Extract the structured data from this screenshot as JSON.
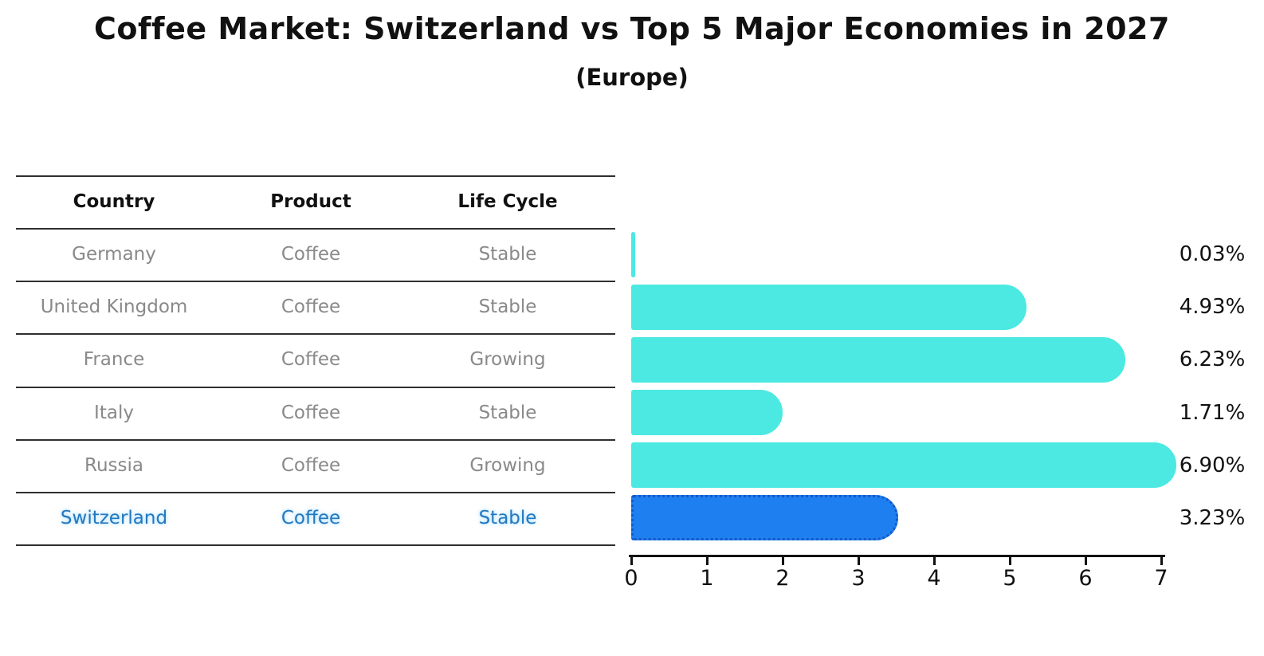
{
  "title": "Coffee Market: Switzerland vs Top 5 Major Economies in 2027",
  "subtitle": "(Europe)",
  "colors": {
    "bar": "#4be9e2",
    "highlight_bar": "#1e80f0",
    "highlight_border": "#1559c9",
    "highlight_text": "#2478be",
    "text": "#111111",
    "muted_text": "#898989",
    "grid_line": "#2f2f2f"
  },
  "table": {
    "headers": [
      "Country",
      "Product",
      "Life Cycle"
    ],
    "rows": [
      {
        "country": "Germany",
        "product": "Coffee",
        "life_cycle": "Stable",
        "highlight": false
      },
      {
        "country": "United Kingdom",
        "product": "Coffee",
        "life_cycle": "Stable",
        "highlight": false
      },
      {
        "country": "France",
        "product": "Coffee",
        "life_cycle": "Growing",
        "highlight": false
      },
      {
        "country": "Italy",
        "product": "Coffee",
        "life_cycle": "Stable",
        "highlight": false
      },
      {
        "country": "Russia",
        "product": "Coffee",
        "life_cycle": "Growing",
        "highlight": false
      },
      {
        "country": "Switzerland",
        "product": "Coffee",
        "life_cycle": "Stable",
        "highlight": true
      }
    ]
  },
  "chart_data": {
    "type": "bar",
    "orientation": "horizontal",
    "title": "Coffee Market: Switzerland vs Top 5 Major Economies in 2027 (Europe)",
    "categories": [
      "Germany",
      "United Kingdom",
      "France",
      "Italy",
      "Russia",
      "Switzerland"
    ],
    "values": [
      0.03,
      4.93,
      6.23,
      1.71,
      6.9,
      3.23
    ],
    "value_labels": [
      "0.03%",
      "4.93%",
      "6.23%",
      "1.71%",
      "6.90%",
      "3.23%"
    ],
    "highlight_index": 5,
    "xlabel": "",
    "ylabel": "",
    "xlim": [
      0,
      7.3
    ],
    "xticks": [
      0,
      1,
      2,
      3,
      4,
      5,
      6,
      7
    ],
    "grid": false,
    "legend": "none"
  }
}
